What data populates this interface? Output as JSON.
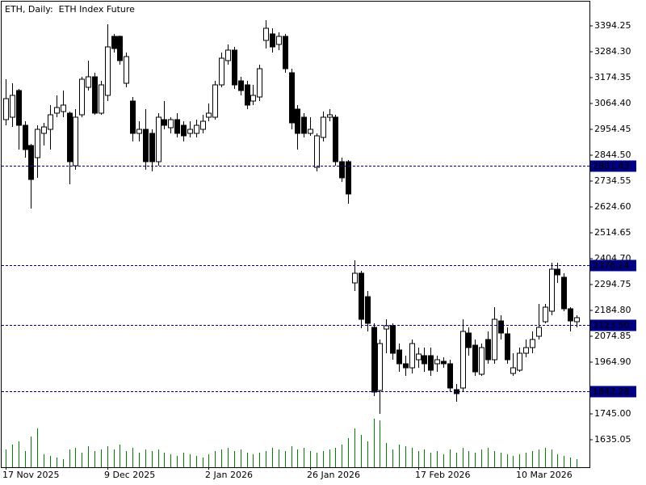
{
  "chart_data": {
    "type": "candlestick",
    "title": "ETH, Daily:  ETH Index Future",
    "categories": [
      "17 Nov 2025",
      null,
      null,
      null,
      null,
      null,
      null,
      null,
      null,
      null,
      null,
      null,
      null,
      null,
      null,
      null,
      "9 Dec 2025",
      null,
      null,
      null,
      null,
      null,
      null,
      null,
      null,
      null,
      null,
      null,
      null,
      null,
      null,
      null,
      "2 Jan 2026",
      null,
      null,
      null,
      null,
      null,
      null,
      null,
      null,
      null,
      null,
      null,
      null,
      null,
      null,
      null,
      "26 Jan 2026",
      null,
      null,
      null,
      null,
      null,
      null,
      null,
      null,
      null,
      null,
      null,
      null,
      null,
      null,
      null,
      null,
      "17 Feb 2026",
      null,
      null,
      null,
      null,
      null,
      null,
      null,
      null,
      null,
      null,
      null,
      null,
      null,
      null,
      null,
      "10 Mar 2026",
      null,
      null,
      null,
      null,
      null,
      null,
      null,
      null,
      null
    ],
    "open": [
      2995.7,
      3006.0,
      3119.4,
      2971.6,
      2885.7,
      2834.2,
      2937.3,
      2954.4,
      3023.2,
      3030.0,
      3023.2,
      2799.8,
      3016.3,
      3133.1,
      3177.8,
      3023.2,
      3098.8,
      3349.6,
      3349.6,
      3150.3,
      3074.7,
      2937.3,
      2954.4,
      2937.3,
      2817.0,
      2995.7,
      2961.3,
      2995.7,
      2971.6,
      2937.3,
      2937.3,
      2954.4,
      3006.0,
      3006.0,
      3143.4,
      3246.5,
      3291.2,
      3160.6,
      3143.4,
      3074.7,
      3091.9,
      3332.4,
      3359.9,
      3315.2,
      3349.6,
      3195.0,
      3040.3,
      3006.0,
      2937.3,
      2792.9,
      2920.1,
      3006.0,
      3006.0,
      2817.0,
      2817.0,
      2301.6,
      2342.8,
      2243.2,
      2112.6,
      1844.6,
      2105.7,
      2119.5,
      2016.4,
      1958.0,
      1940.8,
      1975.2,
      1992.4,
      1992.4,
      1958.0,
      1968.3,
      1958.0,
      1848.0,
      1854.9,
      2088.6,
      2037.0,
      1913.3,
      2061.1,
      1975.2,
      2140.1,
      2085.1,
      1916.8,
      1930.5,
      2002.7,
      2026.7,
      2074.8,
      2136.7,
      2181.4,
      2360.0,
      2325.7,
      2191.7,
      2136.7
    ],
    "high": [
      3167.5,
      3150.3,
      3126.3,
      2988.8,
      2892.0,
      2971.6,
      2981.9,
      3057.5,
      3098.8,
      3119.4,
      3030.0,
      3040.3,
      3177.8,
      3246.5,
      3195.0,
      3160.6,
      3401.1,
      3359.9,
      3353.0,
      3280.9,
      3091.9,
      2988.8,
      3040.3,
      2954.4,
      3023.2,
      3074.7,
      3006.0,
      3023.2,
      2988.8,
      2988.8,
      2995.7,
      3016.3,
      3064.4,
      3160.6,
      3280.9,
      3315.2,
      3304.9,
      3177.8,
      3160.6,
      3143.4,
      3229.3,
      3418.3,
      3384.0,
      3366.8,
      3359.9,
      3212.1,
      3057.5,
      3023.2,
      3006.0,
      2937.3,
      3030.0,
      3040.3,
      3016.3,
      2834.2,
      2823.9,
      2397.8,
      2353.2,
      2267.2,
      2129.8,
      2061.1,
      2147.0,
      2129.8,
      2043.9,
      1992.4,
      2061.1,
      2026.7,
      2026.7,
      2026.7,
      1992.4,
      1985.5,
      1975.2,
      1872.1,
      2147.0,
      2112.6,
      2061.1,
      2043.9,
      2095.5,
      2198.5,
      2164.2,
      2112.6,
      2002.7,
      2026.7,
      2061.1,
      2095.5,
      2212.3,
      2212.3,
      2387.5,
      2387.5,
      2342.8,
      2198.5,
      2164.2
    ],
    "low": [
      2971.6,
      2964.7,
      2868.5,
      2834.2,
      2617.7,
      2748.3,
      2885.7,
      2868.5,
      3006.0,
      3006.0,
      2720.8,
      2782.6,
      3006.0,
      3119.4,
      3016.3,
      3016.3,
      3074.7,
      3280.9,
      3229.3,
      3133.1,
      2902.9,
      2902.9,
      2782.6,
      2775.7,
      2799.8,
      2954.4,
      2937.3,
      2920.1,
      2902.9,
      2920.1,
      2920.1,
      2937.3,
      2988.8,
      2995.7,
      3133.1,
      3229.3,
      3126.3,
      3098.8,
      3040.3,
      3057.5,
      3074.7,
      3298.0,
      3280.9,
      3291.2,
      3195.0,
      2954.4,
      2868.5,
      2920.1,
      2926.9,
      2775.7,
      2902.9,
      2988.8,
      2799.8,
      2731.1,
      2638.5,
      2267.2,
      2109.2,
      2095.5,
      1820.5,
      1745.0,
      2002.7,
      1975.2,
      1923.6,
      1906.5,
      1916.8,
      1940.8,
      1923.6,
      1906.5,
      1923.6,
      1940.8,
      1837.7,
      1796.5,
      1837.7,
      1992.4,
      1906.5,
      1906.5,
      1958.0,
      1958.0,
      2061.1,
      1958.0,
      1906.5,
      1923.6,
      1985.5,
      2002.7,
      2061.1,
      2129.8,
      2164.2,
      2301.6,
      2181.4,
      2095.5,
      2112.6
    ],
    "close": [
      3085.0,
      3098.8,
      2971.6,
      2868.5,
      2741.4,
      2954.4,
      2964.7,
      3016.3,
      3047.2,
      3057.5,
      2817.0,
      3006.0,
      3167.5,
      3177.8,
      3023.2,
      3143.4,
      3304.9,
      3298.0,
      3246.5,
      3263.7,
      2937.3,
      2954.4,
      2817.0,
      2817.0,
      3006.0,
      2971.6,
      2995.7,
      2937.3,
      2926.9,
      2954.4,
      2971.6,
      2988.8,
      3023.2,
      3143.4,
      3256.8,
      3291.2,
      3143.4,
      3119.4,
      3057.5,
      3098.8,
      3212.1,
      3384.0,
      3304.9,
      3349.6,
      3212.1,
      2981.9,
      2937.3,
      2937.3,
      2954.4,
      2926.9,
      3006.0,
      3016.3,
      2817.0,
      2748.3,
      2679.6,
      2342.8,
      2147.0,
      2129.8,
      1837.7,
      2043.9,
      2119.5,
      2002.7,
      1958.0,
      1940.8,
      2043.9,
      1999.2,
      1958.0,
      1930.5,
      1975.2,
      1958.0,
      1854.9,
      1830.9,
      2095.5,
      2026.7,
      1923.6,
      2026.7,
      1975.2,
      2147.0,
      2088.6,
      1975.2,
      1940.8,
      2002.7,
      2026.7,
      2061.1,
      2112.6,
      2198.5,
      2360.0,
      2336.0,
      2191.7,
      2140.1,
      2153.9
    ],
    "volume": [
      22,
      28,
      32,
      20,
      38,
      48,
      16,
      14,
      12,
      10,
      22,
      24,
      18,
      26,
      20,
      22,
      26,
      22,
      28,
      20,
      24,
      18,
      22,
      20,
      22,
      18,
      16,
      14,
      18,
      16,
      14,
      12,
      16,
      20,
      22,
      24,
      20,
      22,
      18,
      16,
      18,
      20,
      24,
      22,
      20,
      26,
      22,
      24,
      20,
      18,
      20,
      22,
      24,
      28,
      36,
      48,
      40,
      32,
      60,
      58,
      30,
      22,
      28,
      26,
      24,
      20,
      22,
      18,
      20,
      16,
      22,
      18,
      24,
      20,
      18,
      22,
      24,
      20,
      18,
      16,
      14,
      16,
      18,
      20,
      22,
      24,
      22,
      16,
      14,
      12,
      10
    ],
    "up_color": "#ffffff",
    "down_color": "#000000",
    "volume_color": "#008000",
    "level_color": "#000080",
    "ylim": [
      1518.2,
      3504.2
    ],
    "yticks": [
      3394.25,
      {
        "value": 3284.3,
        "label": "3284.30"
      },
      3174.35,
      {
        "value": 3064.4,
        "label": "3064.40"
      },
      2954.45,
      {
        "value": 2844.5,
        "label": "2844.50"
      },
      2734.55,
      {
        "value": 2624.6,
        "label": "2624.60"
      },
      2514.65,
      {
        "value": 2404.7,
        "label": "2404.70"
      },
      2294.75,
      {
        "value": 2184.8,
        "label": "2184.80"
      },
      2074.85,
      {
        "value": 1964.9,
        "label": "1964.90"
      },
      {
        "value": 1745.0,
        "label": "1745.00"
      },
      1635.05
    ],
    "levels": [
      2801.43,
      2376.24,
      {
        "value": 2123.5,
        "label": "2123.50"
      },
      1842.28
    ]
  }
}
